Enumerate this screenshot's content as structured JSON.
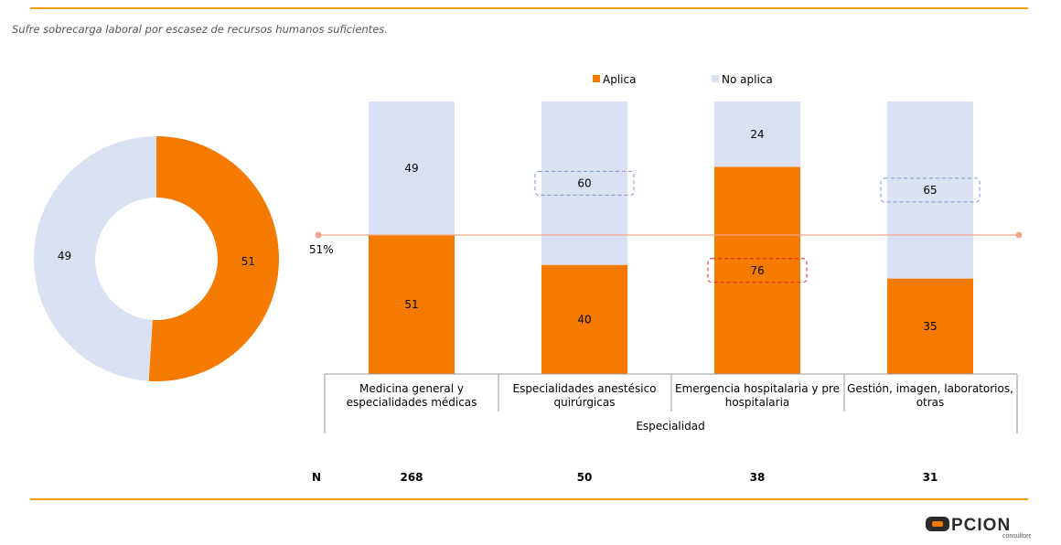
{
  "subtitle": "Sufre sobrecarga laboral por escasez de recursos humanos suficientes.",
  "colors": {
    "aplica": "#f47a00",
    "no_aplica": "#d9e1f2",
    "reference_line": "#f4a58a",
    "rule": "#f39c12"
  },
  "chart_data": [
    {
      "type": "pie",
      "variant": "donut",
      "categories": [
        "Aplica",
        "No aplica"
      ],
      "values": [
        51,
        49
      ]
    },
    {
      "type": "bar",
      "stacked": true,
      "legend": [
        "Aplica",
        "No aplica"
      ],
      "legend_position": "top",
      "categories": [
        "Medicina general y especialidades médicas",
        "Especialidades anestésico quirúrgicas",
        "Emergencia hospitalaria y pre hospitalaria",
        "Gestión, imagen, laboratorios, otras"
      ],
      "category_lines": [
        [
          "Medicina general y",
          "especialidades médicas"
        ],
        [
          "Especialidades anestésico",
          "quirúrgicas"
        ],
        [
          "Emergencia hospitalaria y pre",
          "hospitalaria"
        ],
        [
          "Gestión, imagen, laboratorios,",
          "otras"
        ]
      ],
      "series": [
        {
          "name": "Aplica",
          "values": [
            51,
            40,
            76,
            35
          ]
        },
        {
          "name": "No aplica",
          "values": [
            49,
            60,
            24,
            65
          ]
        }
      ],
      "xlabel": "Especialidad",
      "ylim": [
        0,
        100
      ],
      "reference_line": {
        "value": 51,
        "label": "51%"
      },
      "highlighted": [
        {
          "category_index": 1,
          "series": "No aplica"
        },
        {
          "category_index": 2,
          "series": "Aplica"
        },
        {
          "category_index": 3,
          "series": "No aplica"
        }
      ],
      "n_label": "N",
      "n_values": [
        "268",
        "50",
        "38",
        "31"
      ]
    }
  ],
  "logo": {
    "text": "OPCION",
    "subtext": "consultores"
  }
}
